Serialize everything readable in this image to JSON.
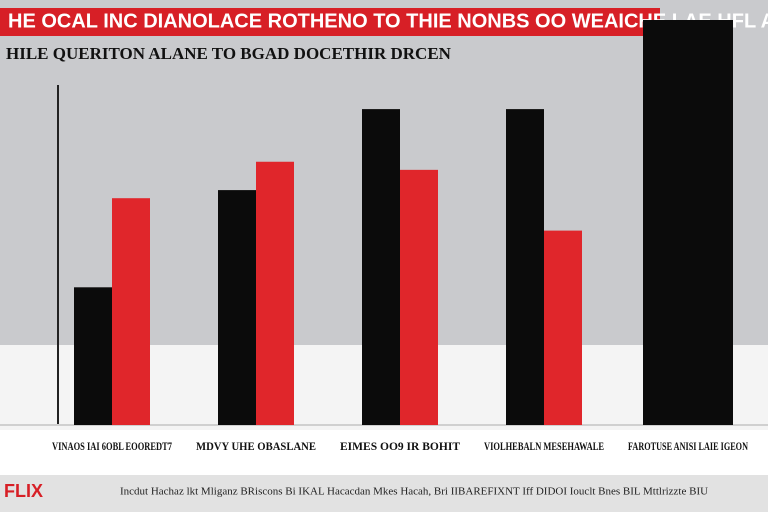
{
  "chart_data": {
    "type": "bar",
    "title": "HE OCAL INC DIANOLACE ROTHENO TO THIE NONBS OO WEAICHE LAE HFL ADIS",
    "subtitle": "HILE QUERITON ALANE TO BGAD DOCETHIR DRCEN",
    "categories": [
      "VINAOS IAI 6OBL EOOREDT7",
      "MDVY UHE OBASLANE",
      "EIMES OO9 IR BOHIT",
      "VIOLHEBALN MESEHAWALE",
      "FAROTUSE ANISI LAIE IGEON"
    ],
    "series": [
      {
        "color": "#0b0b0b",
        "values": [
          34,
          58,
          78,
          78,
          100
        ]
      },
      {
        "color": "#e0262b",
        "values": [
          56,
          65,
          63,
          48,
          null
        ]
      }
    ],
    "ylim": [
      0,
      100
    ]
  },
  "footer": {
    "brand": "FLIX",
    "text": "Incdut Hachaz lkt Mliganz BRiscons Bi IKAL Hacacdan Mkes Hacah, Bri IIBAREFIXNT Iff DIDOI Iouclt Bnes BIL Mttlrizzte BIU"
  }
}
